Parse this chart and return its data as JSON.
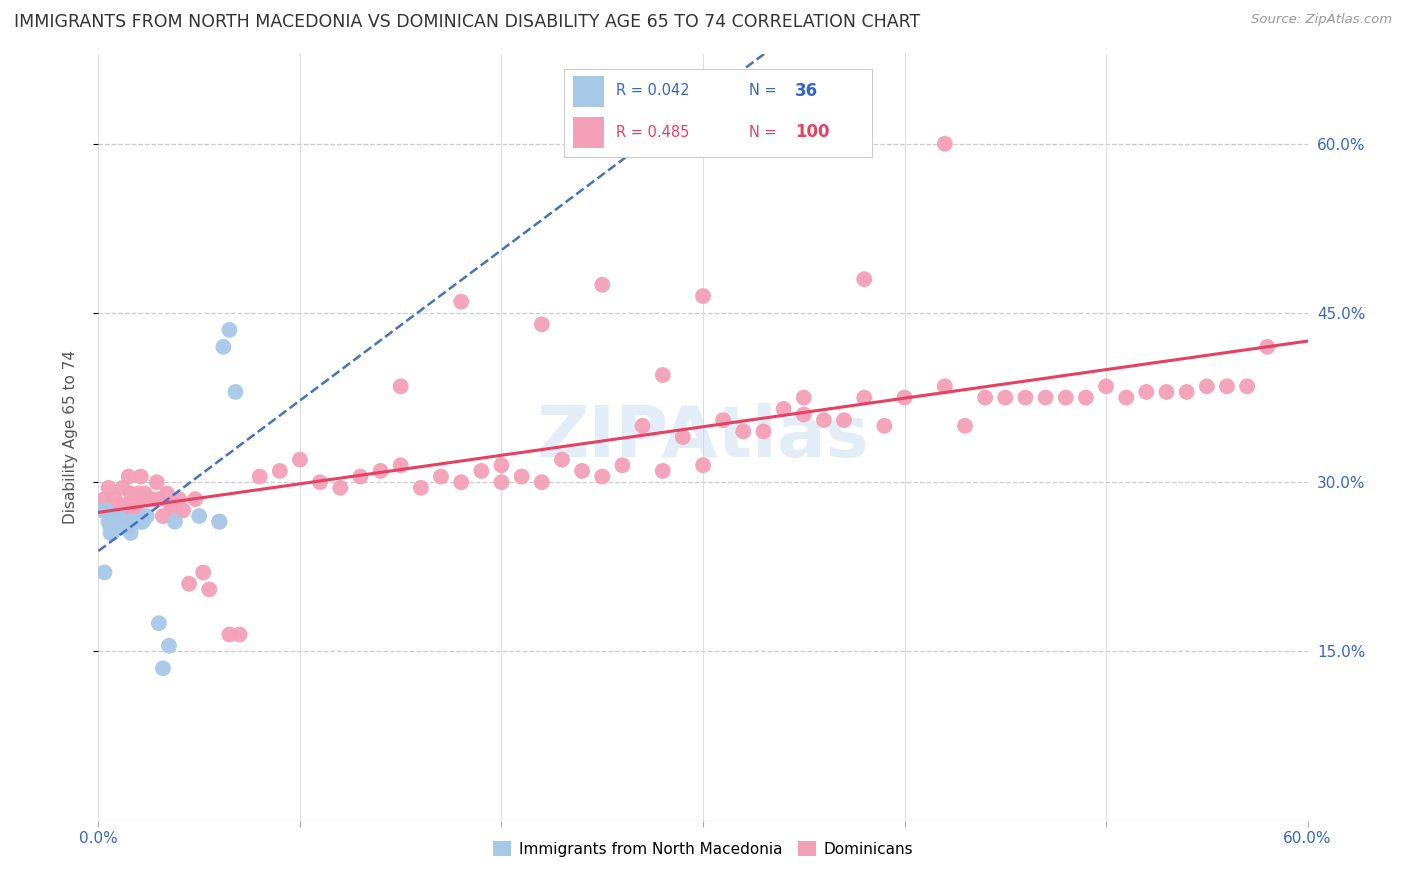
{
  "title": "IMMIGRANTS FROM NORTH MACEDONIA VS DOMINICAN DISABILITY AGE 65 TO 74 CORRELATION CHART",
  "source": "Source: ZipAtlas.com",
  "ylabel": "Disability Age 65 to 74",
  "xlim": [
    0.0,
    0.6
  ],
  "ylim": [
    0.0,
    0.68
  ],
  "macedonian_R": 0.042,
  "macedonian_N": 36,
  "dominican_R": 0.485,
  "dominican_N": 100,
  "macedonian_color": "#a8c8e8",
  "dominican_color": "#f4a0b8",
  "macedonian_line_color": "#4472c4",
  "dominican_line_color": "#e84060",
  "legend_label_1": "Immigrants from North Macedonia",
  "legend_label_2": "Dominicans",
  "watermark": "ZIPAtlas",
  "mac_x": [
    0.002,
    0.003,
    0.004,
    0.005,
    0.006,
    0.006,
    0.007,
    0.007,
    0.008,
    0.008,
    0.009,
    0.009,
    0.01,
    0.01,
    0.011,
    0.011,
    0.012,
    0.012,
    0.013,
    0.014,
    0.015,
    0.016,
    0.017,
    0.019,
    0.021,
    0.022,
    0.024,
    0.03,
    0.032,
    0.035,
    0.038,
    0.05,
    0.06,
    0.062,
    0.065,
    0.068
  ],
  "mac_y": [
    0.275,
    0.22,
    0.275,
    0.265,
    0.26,
    0.255,
    0.27,
    0.255,
    0.27,
    0.265,
    0.265,
    0.26,
    0.27,
    0.265,
    0.265,
    0.26,
    0.265,
    0.26,
    0.265,
    0.265,
    0.26,
    0.255,
    0.265,
    0.265,
    0.265,
    0.265,
    0.27,
    0.175,
    0.135,
    0.155,
    0.265,
    0.27,
    0.265,
    0.42,
    0.435,
    0.38
  ],
  "dom_x": [
    0.003,
    0.005,
    0.007,
    0.008,
    0.009,
    0.01,
    0.011,
    0.012,
    0.013,
    0.014,
    0.015,
    0.016,
    0.017,
    0.018,
    0.019,
    0.02,
    0.021,
    0.022,
    0.023,
    0.025,
    0.027,
    0.029,
    0.03,
    0.032,
    0.034,
    0.036,
    0.038,
    0.04,
    0.042,
    0.045,
    0.048,
    0.052,
    0.055,
    0.06,
    0.065,
    0.07,
    0.08,
    0.09,
    0.1,
    0.11,
    0.12,
    0.13,
    0.14,
    0.15,
    0.16,
    0.17,
    0.18,
    0.19,
    0.2,
    0.21,
    0.22,
    0.23,
    0.24,
    0.25,
    0.26,
    0.27,
    0.28,
    0.29,
    0.3,
    0.31,
    0.32,
    0.33,
    0.34,
    0.35,
    0.36,
    0.37,
    0.38,
    0.39,
    0.4,
    0.42,
    0.43,
    0.44,
    0.45,
    0.46,
    0.47,
    0.48,
    0.49,
    0.5,
    0.51,
    0.52,
    0.53,
    0.54,
    0.55,
    0.56,
    0.57,
    0.58,
    0.42,
    0.25,
    0.3,
    0.18,
    0.22,
    0.38,
    0.28,
    0.15,
    0.35,
    0.2
  ],
  "dom_y": [
    0.285,
    0.295,
    0.275,
    0.285,
    0.275,
    0.28,
    0.28,
    0.295,
    0.275,
    0.27,
    0.305,
    0.29,
    0.275,
    0.285,
    0.275,
    0.29,
    0.305,
    0.285,
    0.29,
    0.285,
    0.285,
    0.3,
    0.285,
    0.27,
    0.29,
    0.28,
    0.275,
    0.285,
    0.275,
    0.21,
    0.285,
    0.22,
    0.205,
    0.265,
    0.165,
    0.165,
    0.305,
    0.31,
    0.32,
    0.3,
    0.295,
    0.305,
    0.31,
    0.315,
    0.295,
    0.305,
    0.3,
    0.31,
    0.315,
    0.305,
    0.3,
    0.32,
    0.31,
    0.305,
    0.315,
    0.35,
    0.31,
    0.34,
    0.315,
    0.355,
    0.345,
    0.345,
    0.365,
    0.36,
    0.355,
    0.355,
    0.375,
    0.35,
    0.375,
    0.385,
    0.35,
    0.375,
    0.375,
    0.375,
    0.375,
    0.375,
    0.375,
    0.385,
    0.375,
    0.38,
    0.38,
    0.38,
    0.385,
    0.385,
    0.385,
    0.42,
    0.6,
    0.475,
    0.465,
    0.46,
    0.44,
    0.48,
    0.395,
    0.385,
    0.375,
    0.3
  ]
}
